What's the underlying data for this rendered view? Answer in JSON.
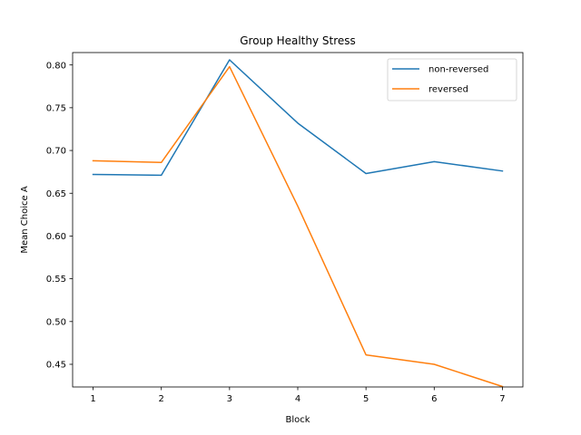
{
  "chart_data": {
    "type": "line",
    "title": "Group Healthy Stress",
    "xlabel": "Block",
    "ylabel": "Mean Choice A",
    "x": [
      1,
      2,
      3,
      4,
      5,
      6,
      7
    ],
    "xlim": [
      0.7,
      7.3
    ],
    "ylim": [
      0.4235,
      0.8145
    ],
    "xticks": [
      "1",
      "2",
      "3",
      "4",
      "5",
      "6",
      "7"
    ],
    "yticks": [
      "0.45",
      "0.50",
      "0.55",
      "0.60",
      "0.65",
      "0.70",
      "0.75",
      "0.80"
    ],
    "grid": false,
    "legend_position": "top-right",
    "series": [
      {
        "name": "non-reversed",
        "color": "#1f77b4",
        "values": [
          0.672,
          0.671,
          0.806,
          0.732,
          0.673,
          0.687,
          0.676
        ]
      },
      {
        "name": "reversed",
        "color": "#ff7f0e",
        "values": [
          0.688,
          0.686,
          0.798,
          0.635,
          0.461,
          0.45,
          0.424
        ]
      }
    ]
  }
}
